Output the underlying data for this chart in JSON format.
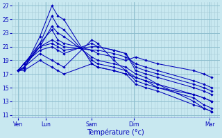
{
  "background_color": "#c8e8f0",
  "plot_bg_color": "#c8e8f0",
  "line_color": "#0000bb",
  "xlabel": "Température (°c)",
  "ylim": [
    10.5,
    27.5
  ],
  "yticks": [
    11,
    13,
    15,
    17,
    19,
    21,
    23,
    25,
    27
  ],
  "xtick_labels": [
    "Ven",
    "Lun",
    "Sam",
    "Dim",
    "Mar"
  ],
  "xtick_positions": [
    0.0,
    0.7,
    1.85,
    2.9,
    4.8
  ],
  "xlim": [
    -0.15,
    5.05
  ],
  "series": [
    [
      17.5,
      17.8,
      22.5,
      27.0,
      25.5,
      25.0,
      18.5,
      18.0,
      17.5,
      17.0,
      16.5,
      16.0,
      15.5,
      13.0,
      12.0,
      11.5
    ],
    [
      17.5,
      17.8,
      21.5,
      25.5,
      24.0,
      23.5,
      19.0,
      18.5,
      18.0,
      17.5,
      16.5,
      16.0,
      15.0,
      13.5,
      12.5,
      12.0
    ],
    [
      17.5,
      18.0,
      21.0,
      24.0,
      23.0,
      22.5,
      19.5,
      19.0,
      18.5,
      18.0,
      17.0,
      16.5,
      15.5,
      14.0,
      13.5,
      13.0
    ],
    [
      17.5,
      18.5,
      21.5,
      23.5,
      22.0,
      21.5,
      20.5,
      20.0,
      19.5,
      19.0,
      19.5,
      19.0,
      18.5,
      17.5,
      17.0,
      16.5
    ],
    [
      17.5,
      18.5,
      21.0,
      22.0,
      21.5,
      21.0,
      20.5,
      20.5,
      20.0,
      19.5,
      18.5,
      18.0,
      17.5,
      16.0,
      15.5,
      15.0
    ],
    [
      17.5,
      18.5,
      21.0,
      21.5,
      21.0,
      20.5,
      21.0,
      21.0,
      20.5,
      20.0,
      18.0,
      17.5,
      17.0,
      15.5,
      15.0,
      14.5
    ],
    [
      17.5,
      18.5,
      20.5,
      21.0,
      20.5,
      20.0,
      21.5,
      21.0,
      20.5,
      20.0,
      17.5,
      17.0,
      16.5,
      15.0,
      14.5,
      14.0
    ],
    [
      17.5,
      18.0,
      20.0,
      19.0,
      18.5,
      18.0,
      22.0,
      21.5,
      19.0,
      17.5,
      16.0,
      15.5,
      15.0,
      14.0,
      13.5,
      13.0
    ],
    [
      17.5,
      17.5,
      19.0,
      18.0,
      17.5,
      17.0,
      18.5,
      18.0,
      17.5,
      17.0,
      15.5,
      15.0,
      14.5,
      12.5,
      12.0,
      11.5
    ]
  ],
  "x_positions": [
    0.0,
    0.15,
    0.55,
    0.85,
    1.0,
    1.15,
    1.85,
    2.0,
    2.4,
    2.7,
    2.95,
    3.2,
    3.5,
    4.4,
    4.65,
    4.85
  ]
}
